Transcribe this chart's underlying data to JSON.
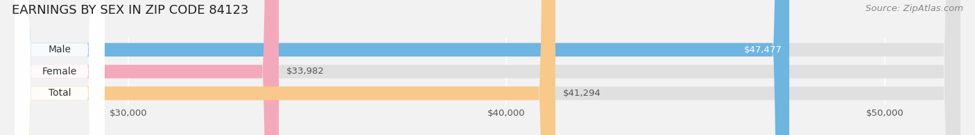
{
  "title": "EARNINGS BY SEX IN ZIP CODE 84123",
  "source": "Source: ZipAtlas.com",
  "categories": [
    "Male",
    "Female",
    "Total"
  ],
  "values": [
    47477,
    33982,
    41294
  ],
  "bar_colors": [
    "#6eb5e0",
    "#f4a8bc",
    "#f8c98a"
  ],
  "value_labels": [
    "$47,477",
    "$33,982",
    "$41,294"
  ],
  "xmin": 30000,
  "xmax": 52000,
  "xlim_left": 27000,
  "xticks": [
    30000,
    40000,
    50000
  ],
  "xtick_labels": [
    "$30,000",
    "$40,000",
    "$50,000"
  ],
  "bar_height": 0.62,
  "background_color": "#f2f2f2",
  "bar_bg_color": "#e0e0e0",
  "badge_bg_color": "#ffffff",
  "title_fontsize": 13,
  "source_fontsize": 9.5,
  "label_fontsize": 9.5,
  "tick_fontsize": 9.5,
  "category_fontsize": 10,
  "grid_color": "#d8d8d8",
  "text_dark": "#555555",
  "text_white": "#ffffff"
}
